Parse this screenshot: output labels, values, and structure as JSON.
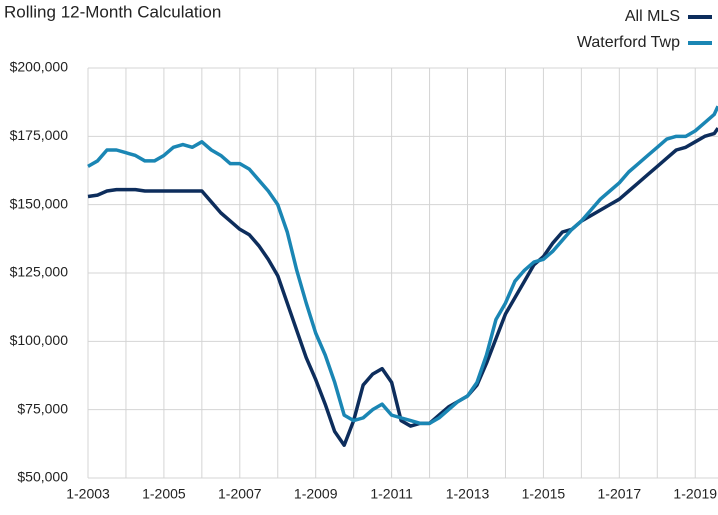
{
  "chart_data": {
    "type": "line",
    "title": "Rolling 12-Month Calculation",
    "x": [
      2003,
      2003.25,
      2003.5,
      2003.75,
      2004,
      2004.25,
      2004.5,
      2004.75,
      2005,
      2005.25,
      2005.5,
      2005.75,
      2006,
      2006.25,
      2006.5,
      2006.75,
      2007,
      2007.25,
      2007.5,
      2007.75,
      2008,
      2008.25,
      2008.5,
      2008.75,
      2009,
      2009.25,
      2009.5,
      2009.75,
      2010,
      2010.25,
      2010.5,
      2010.75,
      2011,
      2011.25,
      2011.5,
      2011.75,
      2012,
      2012.25,
      2012.5,
      2012.75,
      2013,
      2013.25,
      2013.5,
      2013.75,
      2014,
      2014.25,
      2014.5,
      2014.75,
      2015,
      2015.25,
      2015.5,
      2015.75,
      2016,
      2016.25,
      2016.5,
      2016.75,
      2017,
      2017.25,
      2017.5,
      2017.75,
      2018,
      2018.25,
      2018.5,
      2018.75,
      2019,
      2019.25,
      2019.5,
      2019.6
    ],
    "series": [
      {
        "name": "All MLS",
        "color": "#0d2d5c",
        "values": [
          153000,
          153500,
          155000,
          155500,
          155500,
          155500,
          155000,
          155000,
          155000,
          155000,
          155000,
          155000,
          155000,
          151000,
          147000,
          144000,
          141000,
          139000,
          135000,
          130000,
          124000,
          114000,
          104000,
          94000,
          86000,
          77000,
          67000,
          62000,
          71000,
          84000,
          88000,
          90000,
          85000,
          71000,
          69000,
          70000,
          70000,
          73000,
          76000,
          78000,
          80000,
          84000,
          92000,
          101000,
          110000,
          116000,
          122000,
          128000,
          131000,
          136000,
          140000,
          141000,
          144000,
          146000,
          148000,
          150000,
          152000,
          155000,
          158000,
          161000,
          164000,
          167000,
          170000,
          171000,
          173000,
          175000,
          176000,
          178000
        ]
      },
      {
        "name": "Waterford Twp",
        "color": "#1a86b4",
        "values": [
          164000,
          166000,
          170000,
          170000,
          169000,
          168000,
          166000,
          166000,
          168000,
          171000,
          172000,
          171000,
          173000,
          170000,
          168000,
          165000,
          165000,
          163000,
          159000,
          155000,
          150000,
          140000,
          126000,
          114000,
          103000,
          95000,
          85000,
          73000,
          71000,
          72000,
          75000,
          77000,
          73000,
          72000,
          71000,
          70000,
          70000,
          72000,
          75000,
          78000,
          80000,
          85000,
          95000,
          108000,
          114000,
          122000,
          126000,
          129000,
          130000,
          133000,
          137000,
          141000,
          144000,
          148000,
          152000,
          155000,
          158000,
          162000,
          165000,
          168000,
          171000,
          174000,
          175000,
          175000,
          177000,
          180000,
          183000,
          186000
        ]
      }
    ],
    "xlim": [
      2003,
      2019.6
    ],
    "xticks": [
      {
        "value": 2003,
        "label": "1-2003"
      },
      {
        "value": 2005,
        "label": "1-2005"
      },
      {
        "value": 2007,
        "label": "1-2007"
      },
      {
        "value": 2009,
        "label": "1-2009"
      },
      {
        "value": 2011,
        "label": "1-2011"
      },
      {
        "value": 2013,
        "label": "1-2013"
      },
      {
        "value": 2015,
        "label": "1-2015"
      },
      {
        "value": 2017,
        "label": "1-2017"
      },
      {
        "value": 2019,
        "label": "1-2019"
      }
    ],
    "xminor": [
      2004,
      2006,
      2008,
      2010,
      2012,
      2014,
      2016,
      2018
    ],
    "ylim": [
      50000,
      200000
    ],
    "yticks": [
      {
        "value": 50000,
        "label": "$50,000"
      },
      {
        "value": 75000,
        "label": "$75,000"
      },
      {
        "value": 100000,
        "label": "$100,000"
      },
      {
        "value": 125000,
        "label": "$125,000"
      },
      {
        "value": 150000,
        "label": "$150,000"
      },
      {
        "value": 175000,
        "label": "$175,000"
      },
      {
        "value": 200000,
        "label": "$200,000"
      }
    ],
    "grid": true,
    "legend": "top-right"
  }
}
